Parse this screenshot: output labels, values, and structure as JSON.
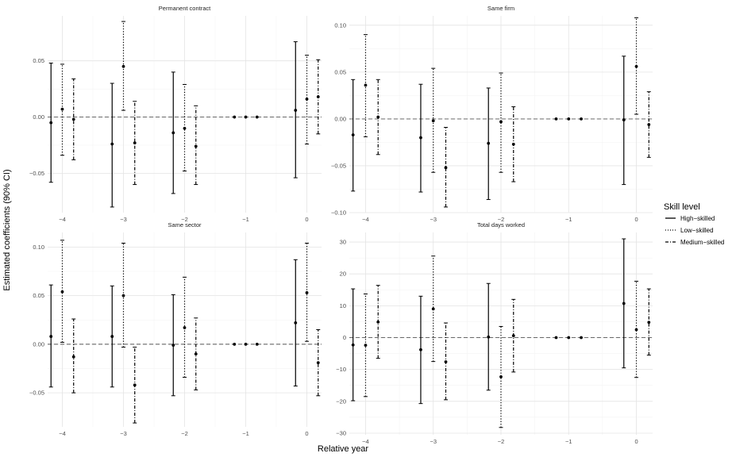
{
  "figure": {
    "xlabel": "Relative year",
    "ylabel": "Estimated coefficients (90% CI)"
  },
  "legend": {
    "title": "Skill level",
    "items": [
      {
        "label": "High−skilled",
        "dash": "solid"
      },
      {
        "label": "Low−skilled",
        "dash": "dotted"
      },
      {
        "label": "Medium−skilled",
        "dash": "dashdot"
      }
    ]
  },
  "chart_data": [
    {
      "type": "scatter",
      "title": "Permanent contract",
      "x": [
        -4,
        -3,
        -2,
        -1,
        0
      ],
      "x_ticks": [
        -4,
        -3,
        -2,
        -1,
        0
      ],
      "x_tick_labels": [
        "−4",
        "−3",
        "−2",
        "−1",
        "0"
      ],
      "xlim": [
        -4.24,
        0.24
      ],
      "ylim": [
        -0.085,
        0.09
      ],
      "y_ticks": [
        -0.05,
        0,
        0.05
      ],
      "y_tick_labels": [
        "−0.05",
        "0.00",
        "0.05"
      ],
      "series": [
        {
          "name": "High−skilled",
          "estimates": [
            -0.005,
            -0.024,
            -0.014,
            0,
            0.006
          ],
          "ci_low": [
            -0.058,
            -0.08,
            -0.068,
            0,
            -0.054
          ],
          "ci_high": [
            0.048,
            0.03,
            0.04,
            0,
            0.067
          ]
        },
        {
          "name": "Low−skilled",
          "estimates": [
            0.007,
            0.045,
            -0.01,
            0,
            0.016
          ],
          "ci_low": [
            -0.034,
            0.006,
            -0.048,
            0,
            -0.024
          ],
          "ci_high": [
            0.047,
            0.085,
            0.029,
            0,
            0.055
          ]
        },
        {
          "name": "Medium−skilled",
          "estimates": [
            -0.002,
            -0.023,
            -0.026,
            0,
            0.018
          ],
          "ci_low": [
            -0.038,
            -0.06,
            -0.06,
            0,
            -0.015
          ],
          "ci_high": [
            0.034,
            0.014,
            0.01,
            0,
            0.051
          ]
        }
      ]
    },
    {
      "type": "scatter",
      "title": "Same firm",
      "x": [
        -4,
        -3,
        -2,
        -1,
        0
      ],
      "x_ticks": [
        -4,
        -3,
        -2,
        -1,
        0
      ],
      "x_tick_labels": [
        "−4",
        "−3",
        "−2",
        "−1",
        "0"
      ],
      "xlim": [
        -4.24,
        0.24
      ],
      "ylim": [
        -0.1,
        0.11
      ],
      "y_ticks": [
        -0.1,
        -0.05,
        0,
        0.05,
        0.1
      ],
      "y_tick_labels": [
        "−0.10",
        "−0.05",
        "0.00",
        "0.05",
        "0.10"
      ],
      "series": [
        {
          "name": "High−skilled",
          "estimates": [
            -0.017,
            -0.02,
            -0.026,
            0,
            -0.001
          ],
          "ci_low": [
            -0.077,
            -0.078,
            -0.086,
            0,
            -0.07
          ],
          "ci_high": [
            0.042,
            0.037,
            0.033,
            0,
            0.067
          ]
        },
        {
          "name": "Low−skilled",
          "estimates": [
            0.036,
            -0.002,
            -0.003,
            0,
            0.056
          ],
          "ci_low": [
            -0.019,
            -0.057,
            -0.057,
            0,
            0.005
          ],
          "ci_high": [
            0.09,
            0.054,
            0.049,
            0,
            0.108
          ]
        },
        {
          "name": "Medium−skilled",
          "estimates": [
            0.002,
            -0.052,
            -0.027,
            0,
            -0.006
          ],
          "ci_low": [
            -0.038,
            -0.094,
            -0.067,
            0,
            -0.041
          ],
          "ci_high": [
            0.042,
            -0.009,
            0.013,
            0,
            0.029
          ]
        }
      ]
    },
    {
      "type": "scatter",
      "title": "Same sector",
      "x": [
        -4,
        -3,
        -2,
        -1,
        0
      ],
      "x_ticks": [
        -4,
        -3,
        -2,
        -1,
        0
      ],
      "x_tick_labels": [
        "−4",
        "−3",
        "−2",
        "−1",
        "0"
      ],
      "xlim": [
        -4.24,
        0.24
      ],
      "ylim": [
        -0.085,
        0.115
      ],
      "y_ticks": [
        -0.05,
        0,
        0.05,
        0.1
      ],
      "y_tick_labels": [
        "−0.05",
        "0.00",
        "0.05",
        "0.10"
      ],
      "series": [
        {
          "name": "High−skilled",
          "estimates": [
            0.008,
            0.008,
            -0.001,
            0,
            0.022
          ],
          "ci_low": [
            -0.044,
            -0.044,
            -0.053,
            0,
            -0.043
          ],
          "ci_high": [
            0.061,
            0.06,
            0.051,
            0,
            0.087
          ]
        },
        {
          "name": "Low−skilled",
          "estimates": [
            0.054,
            0.05,
            0.017,
            0,
            0.053
          ],
          "ci_low": [
            0.002,
            -0.003,
            -0.034,
            0,
            0.003
          ],
          "ci_high": [
            0.107,
            0.104,
            0.069,
            0,
            0.104
          ]
        },
        {
          "name": "Medium−skilled",
          "estimates": [
            -0.013,
            -0.042,
            -0.01,
            0,
            -0.019
          ],
          "ci_low": [
            -0.05,
            -0.081,
            -0.047,
            0,
            -0.053
          ],
          "ci_high": [
            0.026,
            -0.003,
            0.027,
            0,
            0.015
          ]
        }
      ]
    },
    {
      "type": "scatter",
      "title": "Total days worked",
      "x": [
        -4,
        -3,
        -2,
        -1,
        0
      ],
      "x_ticks": [
        -4,
        -3,
        -2,
        -1,
        0
      ],
      "x_tick_labels": [
        "−4",
        "−3",
        "−2",
        "−1",
        "0"
      ],
      "xlim": [
        -4.24,
        0.24
      ],
      "ylim": [
        -30.5,
        33
      ],
      "y_ticks": [
        -30,
        -20,
        -10,
        0,
        10,
        20,
        30
      ],
      "y_tick_labels": [
        "−30",
        "−20",
        "−10",
        "0",
        "10",
        "20",
        "30"
      ],
      "series": [
        {
          "name": "High−skilled",
          "estimates": [
            -2.3,
            -3.8,
            0.2,
            0,
            10.7
          ],
          "ci_low": [
            -19.8,
            -20.7,
            -16.5,
            0,
            -9.5
          ],
          "ci_high": [
            15.3,
            13.0,
            17.0,
            0,
            31.0
          ]
        },
        {
          "name": "Low−skilled",
          "estimates": [
            -2.4,
            9.0,
            -12.3,
            0,
            2.5
          ],
          "ci_low": [
            -18.5,
            -7.5,
            -28.2,
            0,
            -12.5
          ],
          "ci_high": [
            13.7,
            25.6,
            3.5,
            0,
            17.7
          ]
        },
        {
          "name": "Medium−skilled",
          "estimates": [
            4.9,
            -7.6,
            0.6,
            0,
            4.8
          ],
          "ci_low": [
            -6.5,
            -19.5,
            -10.8,
            0,
            -5.5
          ],
          "ci_high": [
            16.4,
            4.6,
            12.0,
            0,
            15.3
          ]
        }
      ]
    }
  ]
}
